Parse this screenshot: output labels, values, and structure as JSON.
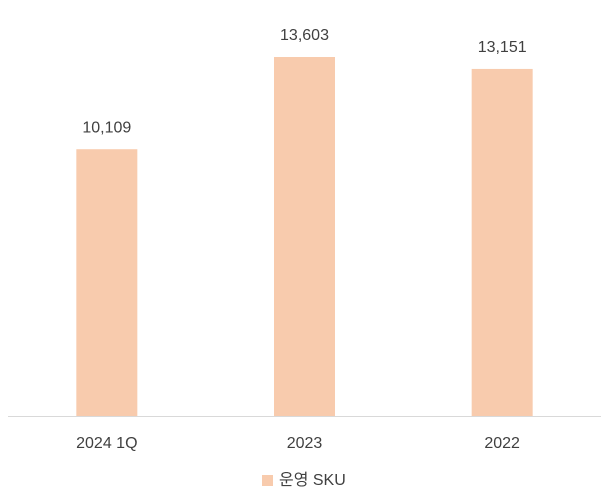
{
  "chart_data": {
    "type": "bar",
    "categories": [
      "2024 1Q",
      "2023",
      "2022"
    ],
    "series": [
      {
        "name": "운영 SKU",
        "color": "#f8cbad",
        "values": [
          10109,
          13603,
          13151
        ],
        "value_labels": [
          "10,109",
          "13,603",
          "13,151"
        ]
      }
    ]
  }
}
